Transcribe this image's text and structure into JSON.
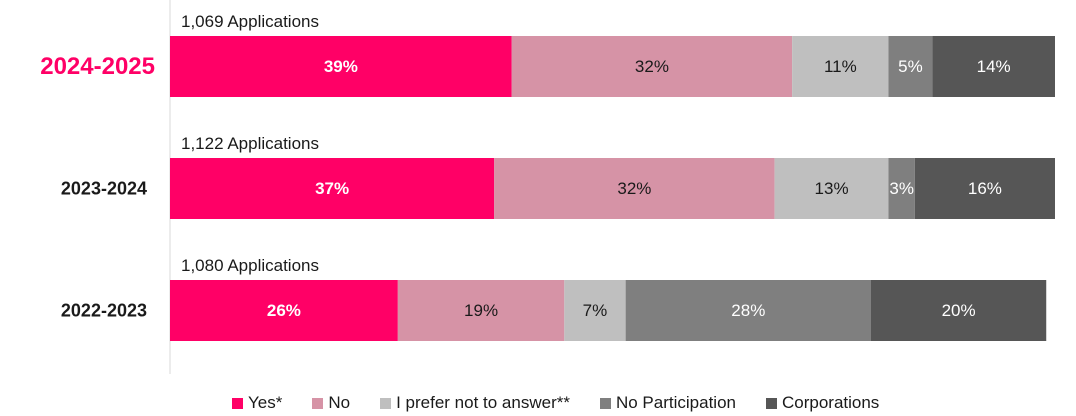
{
  "chart_data": {
    "type": "bar",
    "orientation": "horizontal",
    "stacked": true,
    "categories": [
      "2024-2025",
      "2023-2024",
      "2022-2023"
    ],
    "highlighted_category": "2024-2025",
    "applications_labels": [
      "1,069 Applications",
      "1,122 Applications",
      "1,080 Applications"
    ],
    "series": [
      {
        "name": "Yes*",
        "values": [
          39,
          37,
          26
        ],
        "labels": [
          "39%",
          "37%",
          "26%"
        ],
        "color": "#ff0066",
        "label_color": "#ffffff",
        "label_bold": true
      },
      {
        "name": "No",
        "values": [
          32,
          32,
          19
        ],
        "labels": [
          "32%",
          "32%",
          "19%"
        ],
        "color": "#d693a6",
        "label_color": "#1a1a1a",
        "label_bold": false
      },
      {
        "name": "I prefer not to answer**",
        "values": [
          11,
          13,
          7
        ],
        "labels": [
          "11%",
          "13%",
          "7%"
        ],
        "color": "#bfbfbf",
        "label_color": "#1a1a1a",
        "label_bold": false
      },
      {
        "name": "No Participation",
        "values": [
          5,
          3,
          28
        ],
        "labels": [
          "5%",
          "3%",
          "28%"
        ],
        "color": "#7f7f7f",
        "label_color": "#ffffff",
        "label_bold": false
      },
      {
        "name": "Corporations",
        "values": [
          14,
          16,
          20
        ],
        "labels": [
          "14%",
          "16%",
          "20%"
        ],
        "color": "#565656",
        "label_color": "#ffffff",
        "label_bold": false
      }
    ],
    "xlim": [
      0,
      101
    ],
    "grid": false,
    "legend_position": "bottom",
    "title": "",
    "xlabel": "",
    "ylabel": ""
  }
}
